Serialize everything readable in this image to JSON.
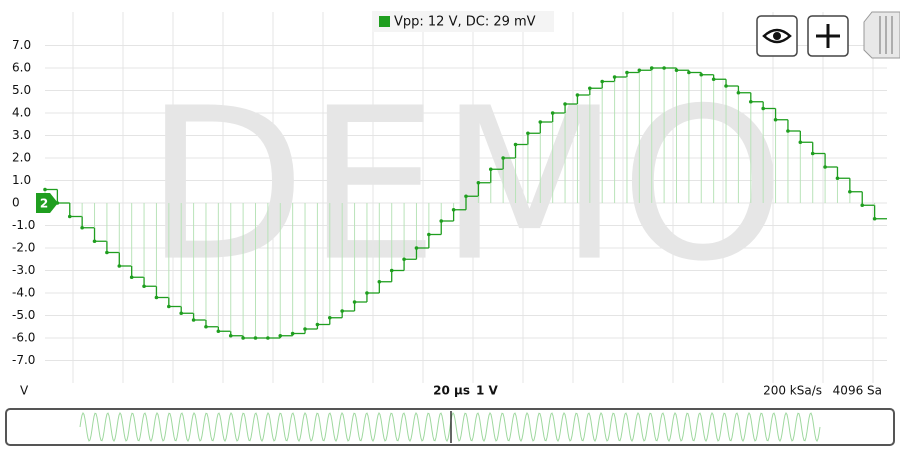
{
  "chart_data": {
    "type": "line",
    "legend": "Vpp: 12 V, DC: 29 mV",
    "color": "#1f9e1f",
    "ylabel": "V",
    "channel": "2",
    "watermark": "DEMO",
    "timebase": "20 µs",
    "volts_per_div": "1 V",
    "sample_rate": "200 kSa/s",
    "sample_count": "4096 Sa",
    "ylim": [
      -8,
      8.5
    ],
    "yticks": [
      {
        "value": 7,
        "label": "7.0"
      },
      {
        "value": 6,
        "label": "6.0"
      },
      {
        "value": 5,
        "label": "5.0"
      },
      {
        "value": 4,
        "label": "4.0"
      },
      {
        "value": 3,
        "label": "3.0"
      },
      {
        "value": 2,
        "label": "2.0"
      },
      {
        "value": 1,
        "label": "1.0"
      },
      0,
      {
        "value": -1,
        "label": "-1.0"
      },
      {
        "value": -2,
        "label": "-2.0"
      },
      {
        "value": -3,
        "label": "-3.0"
      },
      {
        "value": -4,
        "label": "-4.0"
      },
      {
        "value": -5,
        "label": "-5.0"
      },
      {
        "value": -6,
        "label": "-6.0"
      },
      {
        "value": -7,
        "label": "-7.0"
      }
    ],
    "grid": true,
    "values": [
      0.6,
      0.0,
      -0.6,
      -1.1,
      -1.7,
      -2.2,
      -2.8,
      -3.3,
      -3.7,
      -4.2,
      -4.6,
      -4.9,
      -5.2,
      -5.5,
      -5.7,
      -5.9,
      -6.0,
      -6.0,
      -6.0,
      -5.9,
      -5.8,
      -5.6,
      -5.4,
      -5.1,
      -4.8,
      -4.4,
      -4.0,
      -3.5,
      -3.0,
      -2.5,
      -2.0,
      -1.4,
      -0.8,
      -0.3,
      0.3,
      0.9,
      1.5,
      2.0,
      2.6,
      3.1,
      3.6,
      4.0,
      4.4,
      4.8,
      5.1,
      5.4,
      5.6,
      5.8,
      5.9,
      6.0,
      6.0,
      5.9,
      5.8,
      5.7,
      5.5,
      5.2,
      4.9,
      4.5,
      4.2,
      3.7,
      3.2,
      2.7,
      2.2,
      1.6,
      1.1,
      0.5,
      -0.1,
      -0.7
    ]
  }
}
